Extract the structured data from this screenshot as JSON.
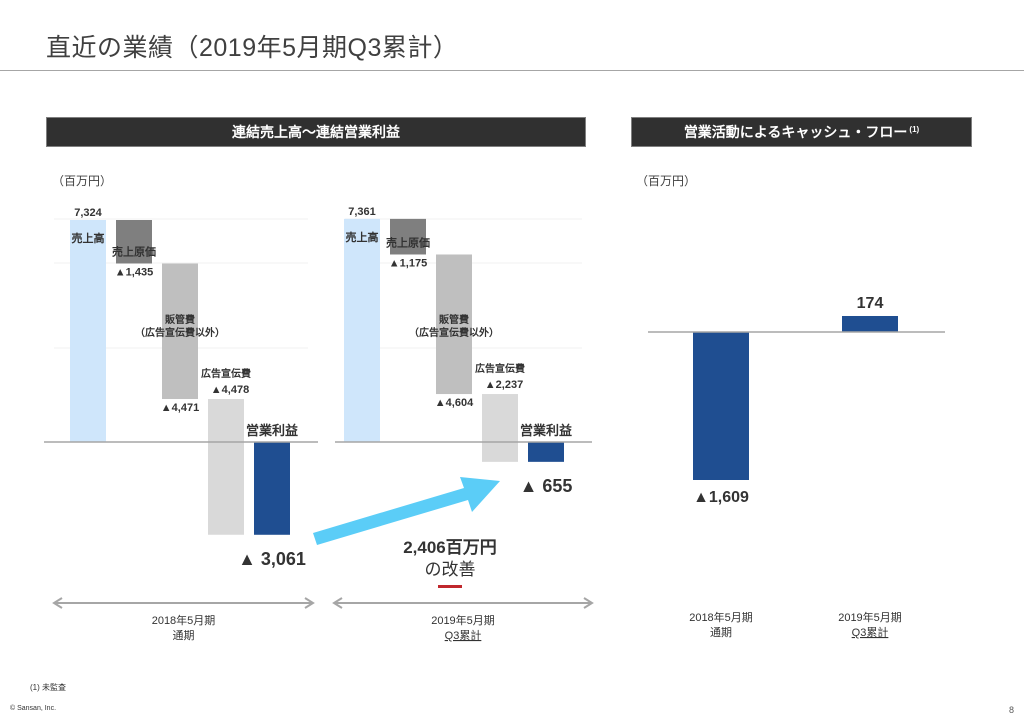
{
  "page": {
    "title": "直近の業績（2019年5月期Q3累計）",
    "page_number": "8",
    "footnote": "(1) 未監査",
    "copyright": "© Sansan, Inc."
  },
  "sections": {
    "left_header": "連結売上高〜連結営業利益",
    "right_header": "営業活動によるキャッシュ・フロー",
    "right_header_note": "(1)",
    "unit_left": "（百万円）",
    "unit_right": "（百万円）"
  },
  "colors": {
    "revenue": "#cfe6fb",
    "cogs": "#7f7f7f",
    "sga": "#bfbfbf",
    "advertising": "#d9d9d9",
    "operating_income": "#1f4e91",
    "operating_income_label": "#1f4e91",
    "arrow": "#5bcdf7",
    "improvement_text": "#5bcdf7",
    "underline_red": "#c0282d",
    "baseline": "#a6a6a6",
    "period_arrow": "#a6a6a6"
  },
  "chart_data": [
    {
      "type": "waterfall",
      "title": "連結売上高〜連結営業利益",
      "unit": "百万円",
      "periods": [
        {
          "period_label_line1": "2018年5月期",
          "period_label_line2": "通期",
          "steps": [
            {
              "key": "revenue",
              "name": "売上高",
              "value": 7324,
              "value_label": "7,324"
            },
            {
              "key": "cogs",
              "name": "売上原価",
              "value": -1435,
              "value_label": "▲1,435"
            },
            {
              "key": "sga",
              "name": "販管費",
              "name_line2": "（広告宣伝費以外）",
              "value": -4471,
              "value_label": "▲4,471"
            },
            {
              "key": "advertising",
              "name": "広告宣伝費",
              "value": -4478,
              "value_label": "▲4,478"
            },
            {
              "key": "operating_income",
              "name": "営業利益",
              "value": -3061,
              "value_label": "▲ 3,061"
            }
          ]
        },
        {
          "period_label_line1": "2019年5月期",
          "period_label_line2": "Q3累計",
          "steps": [
            {
              "key": "revenue",
              "name": "売上高",
              "value": 7361,
              "value_label": "7,361"
            },
            {
              "key": "cogs",
              "name": "売上原価",
              "value": -1175,
              "value_label": "▲1,175"
            },
            {
              "key": "sga",
              "name": "販管費",
              "name_line2": "（広告宣伝費以外）",
              "value": -4604,
              "value_label": "▲4,604"
            },
            {
              "key": "advertising",
              "name": "広告宣伝費",
              "value": -2237,
              "value_label": "▲2,237"
            },
            {
              "key": "operating_income",
              "name": "営業利益",
              "value": -655,
              "value_label": "▲ 655"
            }
          ]
        }
      ],
      "annotation": {
        "line1": "2,406百万円",
        "line2": "の改善",
        "improvement_value": 2406
      }
    },
    {
      "type": "bar",
      "title": "営業活動によるキャッシュ・フロー",
      "unit": "百万円",
      "categories": [
        "2018年5月期 通期",
        "2019年5月期 Q3累計"
      ],
      "category_line1": [
        "2018年5月期",
        "2019年5月期"
      ],
      "category_line2": [
        "通期",
        "Q3累計"
      ],
      "values": [
        -1609,
        174
      ],
      "value_labels": [
        "▲1,609",
        "174"
      ]
    }
  ]
}
